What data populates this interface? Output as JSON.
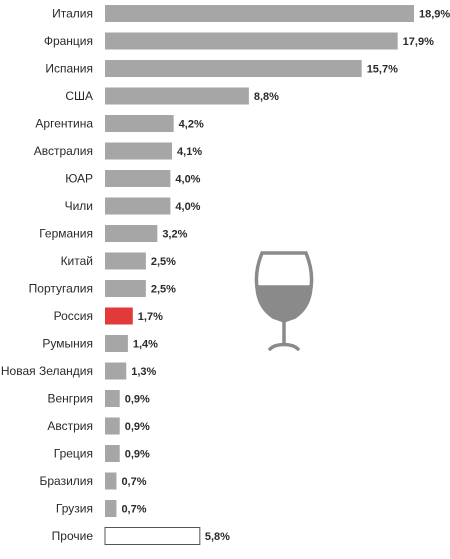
{
  "chart_data": {
    "type": "bar",
    "orientation": "horizontal",
    "categories": [
      "Италия",
      "Франция",
      "Испания",
      "США",
      "Аргентина",
      "Австралия",
      "ЮАР",
      "Чили",
      "Германия",
      "Китай",
      "Португалия",
      "Россия",
      "Румыния",
      "Новая Зеландия",
      "Венгрия",
      "Австрия",
      "Греция",
      "Бразилия",
      "Грузия",
      "Прочие"
    ],
    "values": [
      18.9,
      17.9,
      15.7,
      8.8,
      4.2,
      4.1,
      4.0,
      4.0,
      3.2,
      2.5,
      2.5,
      1.7,
      1.4,
      1.3,
      0.9,
      0.9,
      0.9,
      0.7,
      0.7,
      5.8
    ],
    "value_labels": [
      "18,9%",
      "17,9%",
      "15,7%",
      "8,8%",
      "4,2%",
      "4,1%",
      "4,0%",
      "4,0%",
      "3,2%",
      "2,5%",
      "2,5%",
      "1,7%",
      "1,4%",
      "1,3%",
      "0,9%",
      "0,9%",
      "0,9%",
      "0,7%",
      "0,7%",
      "5,8%"
    ],
    "title": "",
    "xlabel": "",
    "ylabel": "",
    "grid": false,
    "legend": "none",
    "unit": "%",
    "colors": {
      "default": "#a6a6a6",
      "highlight": "#e23a3a",
      "highlight_category": "Россия",
      "outline_category": "Прочие",
      "outline_fill": "#ffffff",
      "outline_stroke": "#555555"
    }
  },
  "decoration": {
    "icon": "wine-glass-icon"
  }
}
